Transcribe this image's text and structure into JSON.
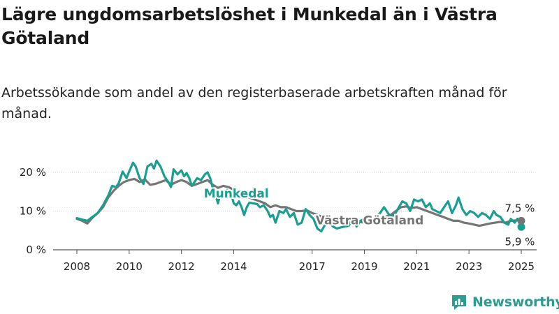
{
  "title": "Lägre ungdomsarbetslöshet i Munkedal än i Västra Götaland",
  "subtitle": "Arbetssökande som andel av den registerbaserade arbetskraften månad för månad.",
  "brand": "Newsworthy",
  "colors": {
    "munkedal": "#1a9e8f",
    "vastra": "#757575",
    "grid": "#d6d6d6",
    "text": "#222222"
  },
  "chart_data": {
    "type": "line",
    "ylim": [
      0,
      20
    ],
    "xlim": [
      2008,
      2025.3
    ],
    "yticks": [
      {
        "value": 0,
        "label": "0 %"
      },
      {
        "value": 10,
        "label": "10 %"
      },
      {
        "value": 20,
        "label": "20 %"
      }
    ],
    "xticks": [
      {
        "value": 2008,
        "label": "2008"
      },
      {
        "value": 2010,
        "label": "2010"
      },
      {
        "value": 2012,
        "label": "2012"
      },
      {
        "value": 2014,
        "label": "2014"
      },
      {
        "value": 2017,
        "label": "2017"
      },
      {
        "value": 2019,
        "label": "2019"
      },
      {
        "value": 2021,
        "label": "2021"
      },
      {
        "value": 2023,
        "label": "2023"
      },
      {
        "value": 2025,
        "label": "2025"
      }
    ],
    "series": [
      {
        "name": "Munkedal",
        "key": "munkedal",
        "end_label": "5,9 %",
        "points": [
          [
            2008.0,
            8.2
          ],
          [
            2008.2,
            7.8
          ],
          [
            2008.4,
            7.5
          ],
          [
            2008.6,
            8.5
          ],
          [
            2008.8,
            9.5
          ],
          [
            2009.0,
            11.5
          ],
          [
            2009.2,
            14.0
          ],
          [
            2009.35,
            16.5
          ],
          [
            2009.5,
            16.2
          ],
          [
            2009.6,
            17.2
          ],
          [
            2009.75,
            20.2
          ],
          [
            2009.9,
            18.5
          ],
          [
            2010.0,
            20.2
          ],
          [
            2010.15,
            22.5
          ],
          [
            2010.25,
            21.5
          ],
          [
            2010.4,
            18.5
          ],
          [
            2010.55,
            17.0
          ],
          [
            2010.7,
            21.5
          ],
          [
            2010.85,
            22.2
          ],
          [
            2010.95,
            21.0
          ],
          [
            2011.05,
            23.0
          ],
          [
            2011.2,
            21.5
          ],
          [
            2011.35,
            19.0
          ],
          [
            2011.5,
            17.5
          ],
          [
            2011.6,
            16.2
          ],
          [
            2011.7,
            20.8
          ],
          [
            2011.85,
            19.5
          ],
          [
            2012.0,
            20.5
          ],
          [
            2012.1,
            19.0
          ],
          [
            2012.2,
            19.8
          ],
          [
            2012.3,
            18.5
          ],
          [
            2012.4,
            16.5
          ],
          [
            2012.5,
            17.5
          ],
          [
            2012.6,
            18.5
          ],
          [
            2012.75,
            18.0
          ],
          [
            2012.9,
            19.5
          ],
          [
            2013.0,
            20.0
          ],
          [
            2013.1,
            18.5
          ],
          [
            2013.2,
            16.0
          ],
          [
            2013.3,
            14.2
          ],
          [
            2013.4,
            12.0
          ],
          [
            2013.5,
            15.0
          ],
          [
            2013.6,
            13.5
          ],
          [
            2013.75,
            15.5
          ],
          [
            2013.9,
            14.5
          ],
          [
            2014.0,
            12.0
          ],
          [
            2014.1,
            11.5
          ],
          [
            2014.2,
            12.5
          ],
          [
            2014.3,
            11.0
          ],
          [
            2014.4,
            9.0
          ],
          [
            2014.5,
            11.0
          ],
          [
            2014.6,
            12.2
          ],
          [
            2014.75,
            12.0
          ],
          [
            2014.9,
            11.8
          ],
          [
            2015.0,
            11.0
          ],
          [
            2015.15,
            11.5
          ],
          [
            2015.3,
            10.0
          ],
          [
            2015.4,
            8.5
          ],
          [
            2015.5,
            9.0
          ],
          [
            2015.6,
            7.0
          ],
          [
            2015.75,
            10.0
          ],
          [
            2015.9,
            9.5
          ],
          [
            2016.0,
            10.5
          ],
          [
            2016.15,
            8.5
          ],
          [
            2016.3,
            9.5
          ],
          [
            2016.45,
            6.5
          ],
          [
            2016.6,
            7.0
          ],
          [
            2016.75,
            10.5
          ],
          [
            2016.9,
            9.0
          ],
          [
            2017.05,
            8.0
          ],
          [
            2017.2,
            5.5
          ],
          [
            2017.35,
            4.8
          ],
          [
            2017.5,
            6.5
          ],
          [
            2017.65,
            7.2
          ],
          [
            2017.8,
            6.0
          ],
          [
            2017.95,
            5.5
          ],
          [
            2018.1,
            5.8
          ],
          [
            2018.25,
            6.0
          ],
          [
            2018.4,
            6.2
          ],
          [
            2018.55,
            8.0
          ],
          [
            2018.7,
            6.0
          ],
          [
            2018.85,
            7.5
          ],
          [
            2019.0,
            8.0
          ],
          [
            2019.15,
            8.0
          ],
          [
            2019.3,
            7.8
          ],
          [
            2019.45,
            8.5
          ],
          [
            2019.6,
            9.5
          ],
          [
            2019.75,
            11.0
          ],
          [
            2019.9,
            9.5
          ],
          [
            2020.0,
            8.5
          ],
          [
            2020.15,
            9.0
          ],
          [
            2020.3,
            10.8
          ],
          [
            2020.45,
            12.5
          ],
          [
            2020.6,
            12.0
          ],
          [
            2020.75,
            10.0
          ],
          [
            2020.9,
            13.0
          ],
          [
            2021.05,
            12.5
          ],
          [
            2021.2,
            13.0
          ],
          [
            2021.35,
            11.0
          ],
          [
            2021.5,
            12.0
          ],
          [
            2021.6,
            10.5
          ],
          [
            2021.75,
            10.0
          ],
          [
            2021.9,
            9.5
          ],
          [
            2022.05,
            11.0
          ],
          [
            2022.2,
            12.5
          ],
          [
            2022.35,
            9.5
          ],
          [
            2022.5,
            11.5
          ],
          [
            2022.6,
            13.5
          ],
          [
            2022.75,
            10.5
          ],
          [
            2022.9,
            9.0
          ],
          [
            2023.05,
            10.0
          ],
          [
            2023.2,
            9.5
          ],
          [
            2023.35,
            8.5
          ],
          [
            2023.5,
            9.5
          ],
          [
            2023.65,
            9.0
          ],
          [
            2023.8,
            8.0
          ],
          [
            2023.95,
            10.0
          ],
          [
            2024.05,
            9.0
          ],
          [
            2024.2,
            8.5
          ],
          [
            2024.35,
            7.0
          ],
          [
            2024.5,
            6.5
          ],
          [
            2024.6,
            8.0
          ],
          [
            2024.75,
            7.0
          ],
          [
            2024.85,
            8.0
          ],
          [
            2025.0,
            5.9
          ]
        ]
      },
      {
        "name": "Västra Götaland",
        "key": "vastra",
        "end_label": "7,5 %",
        "points": [
          [
            2008.0,
            8.0
          ],
          [
            2008.2,
            7.5
          ],
          [
            2008.4,
            6.8
          ],
          [
            2008.6,
            8.3
          ],
          [
            2008.8,
            9.5
          ],
          [
            2009.0,
            11.0
          ],
          [
            2009.2,
            13.5
          ],
          [
            2009.4,
            15.2
          ],
          [
            2009.6,
            16.5
          ],
          [
            2009.8,
            17.5
          ],
          [
            2010.0,
            18.0
          ],
          [
            2010.2,
            18.3
          ],
          [
            2010.4,
            17.5
          ],
          [
            2010.6,
            18.2
          ],
          [
            2010.8,
            16.8
          ],
          [
            2011.0,
            17.0
          ],
          [
            2011.2,
            17.5
          ],
          [
            2011.4,
            18.0
          ],
          [
            2011.6,
            16.8
          ],
          [
            2011.8,
            17.5
          ],
          [
            2012.0,
            18.0
          ],
          [
            2012.2,
            17.5
          ],
          [
            2012.4,
            16.5
          ],
          [
            2012.6,
            17.0
          ],
          [
            2012.8,
            17.5
          ],
          [
            2013.0,
            18.0
          ],
          [
            2013.2,
            16.8
          ],
          [
            2013.4,
            16.0
          ],
          [
            2013.6,
            16.5
          ],
          [
            2013.8,
            16.2
          ],
          [
            2014.0,
            15.5
          ],
          [
            2014.2,
            15.0
          ],
          [
            2014.4,
            14.0
          ],
          [
            2014.6,
            13.5
          ],
          [
            2014.8,
            13.0
          ],
          [
            2015.0,
            12.5
          ],
          [
            2015.2,
            12.0
          ],
          [
            2015.4,
            11.0
          ],
          [
            2015.6,
            11.5
          ],
          [
            2015.8,
            11.0
          ],
          [
            2016.0,
            11.0
          ],
          [
            2016.2,
            10.5
          ],
          [
            2016.4,
            10.0
          ],
          [
            2016.6,
            10.0
          ],
          [
            2016.8,
            10.2
          ],
          [
            2017.0,
            9.5
          ],
          [
            2017.2,
            9.0
          ],
          [
            2017.4,
            8.5
          ],
          [
            2017.6,
            8.0
          ],
          [
            2017.8,
            7.5
          ],
          [
            2018.0,
            7.2
          ],
          [
            2018.2,
            7.0
          ],
          [
            2018.4,
            7.0
          ],
          [
            2018.6,
            6.8
          ],
          [
            2018.8,
            7.2
          ],
          [
            2019.0,
            7.0
          ],
          [
            2019.2,
            7.5
          ],
          [
            2019.4,
            7.8
          ],
          [
            2019.6,
            8.0
          ],
          [
            2019.8,
            8.5
          ],
          [
            2020.0,
            9.0
          ],
          [
            2020.2,
            10.0
          ],
          [
            2020.4,
            11.0
          ],
          [
            2020.6,
            11.2
          ],
          [
            2020.8,
            10.8
          ],
          [
            2021.0,
            11.0
          ],
          [
            2021.2,
            10.5
          ],
          [
            2021.4,
            10.0
          ],
          [
            2021.6,
            9.5
          ],
          [
            2021.8,
            9.0
          ],
          [
            2022.0,
            8.5
          ],
          [
            2022.2,
            8.0
          ],
          [
            2022.4,
            7.5
          ],
          [
            2022.6,
            7.5
          ],
          [
            2022.8,
            7.0
          ],
          [
            2023.0,
            6.8
          ],
          [
            2023.2,
            6.5
          ],
          [
            2023.4,
            6.2
          ],
          [
            2023.6,
            6.5
          ],
          [
            2023.8,
            6.8
          ],
          [
            2024.0,
            7.0
          ],
          [
            2024.2,
            7.2
          ],
          [
            2024.4,
            7.0
          ],
          [
            2024.6,
            7.5
          ],
          [
            2024.8,
            7.6
          ],
          [
            2025.0,
            7.5
          ]
        ]
      }
    ],
    "labels": [
      {
        "series": "munkedal",
        "text": "Munkedal",
        "x": 2014.1,
        "y": 13.5
      },
      {
        "series": "vastra",
        "text": "Västra Götaland",
        "x": 2019.2,
        "y": 6.6
      }
    ]
  }
}
